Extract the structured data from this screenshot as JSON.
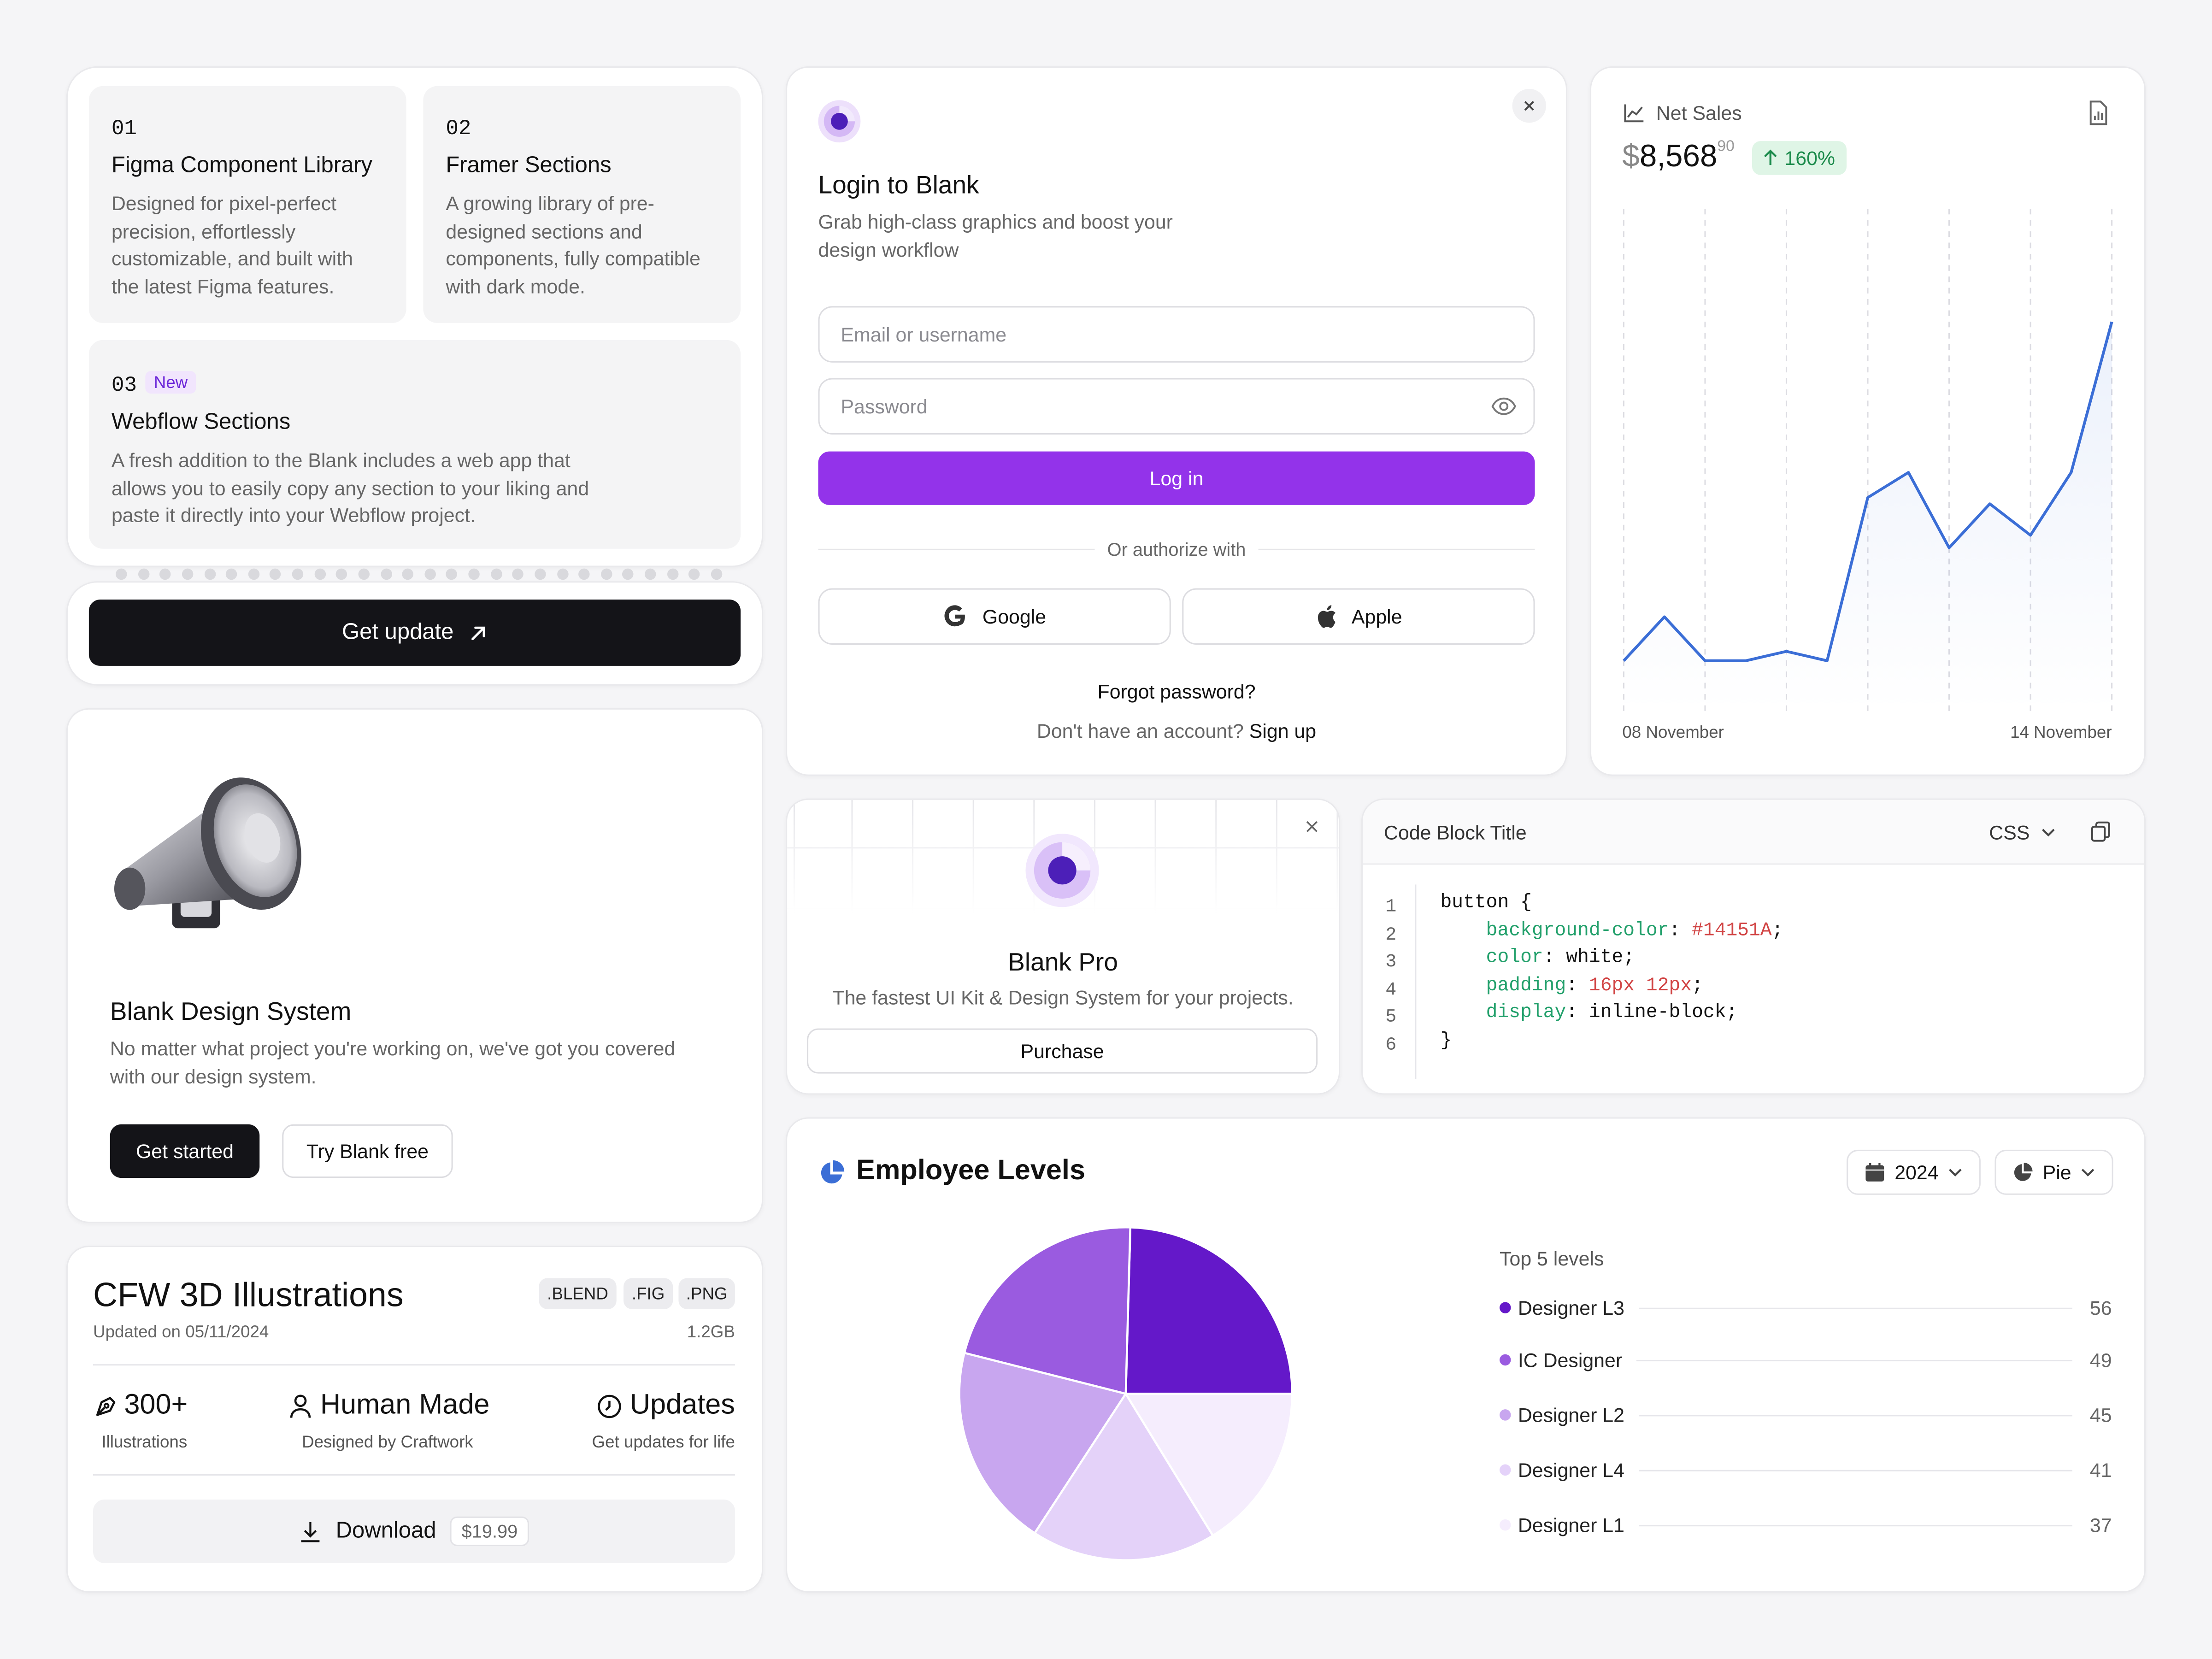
{
  "features": {
    "items": [
      {
        "num": "01",
        "title": "Figma Component Library",
        "desc": [
          "Designed for pixel-perfect",
          "precision, effortlessly",
          "customizable, and built with",
          "the latest Figma features."
        ]
      },
      {
        "num": "02",
        "title": "Framer Sections",
        "desc": [
          "A growing library of pre-",
          "designed sections and",
          "components, fully compatible",
          "with dark mode."
        ]
      },
      {
        "num": "03",
        "badge": "New",
        "title": "Webflow Sections",
        "desc": [
          "A fresh addition to the Blank includes a web app that",
          "allows you to easily copy any section to your liking and",
          "paste it directly into your Webflow project."
        ]
      }
    ],
    "cta_label": "Get update"
  },
  "login": {
    "title": "Login to Blank",
    "subtitle": [
      "Grab high-class graphics and boost your",
      "design workflow"
    ],
    "email_placeholder": "Email or username",
    "password_placeholder": "Password",
    "login_label": "Log in",
    "divider_label": "Or authorize with",
    "google_label": "Google",
    "apple_label": "Apple",
    "forgot_label": "Forgot password?",
    "no_account": "Don't have an account?",
    "signup_label": "Sign up"
  },
  "net_sales": {
    "title": "Net Sales",
    "currency": "$",
    "amount": "8,568",
    "cents": "90",
    "change": "160%",
    "start_label": "08 November",
    "end_label": "14 November",
    "accent": "#3b6ed6"
  },
  "design_system": {
    "title": "Blank Design System",
    "desc": [
      "No matter what project you're working on, we've got you covered",
      "with our design system."
    ],
    "primary_label": "Get started",
    "secondary_label": "Try Blank free"
  },
  "pro": {
    "title": "Blank Pro",
    "desc": "The fastest UI Kit & Design System for your projects.",
    "button_label": "Purchase"
  },
  "code": {
    "title": "Code Block Title",
    "lang": "CSS",
    "lines": [
      {
        "n": "1",
        "parts": [
          {
            "t": "button {",
            "c": ""
          }
        ]
      },
      {
        "n": "2",
        "parts": [
          {
            "t": "    ",
            "c": ""
          },
          {
            "t": "background-color",
            "c": "kw"
          },
          {
            "t": ": ",
            "c": ""
          },
          {
            "t": "#14151A",
            "c": "val"
          },
          {
            "t": ";",
            "c": ""
          }
        ]
      },
      {
        "n": "3",
        "parts": [
          {
            "t": "    ",
            "c": ""
          },
          {
            "t": "color",
            "c": "kw"
          },
          {
            "t": ": white;",
            "c": ""
          }
        ]
      },
      {
        "n": "4",
        "parts": [
          {
            "t": "    ",
            "c": ""
          },
          {
            "t": "padding",
            "c": "kw"
          },
          {
            "t": ": ",
            "c": ""
          },
          {
            "t": "16px 12px",
            "c": "val"
          },
          {
            "t": ";",
            "c": ""
          }
        ]
      },
      {
        "n": "5",
        "parts": [
          {
            "t": "    ",
            "c": ""
          },
          {
            "t": "display",
            "c": "kw"
          },
          {
            "t": ": inline-block;",
            "c": ""
          }
        ]
      },
      {
        "n": "6",
        "parts": [
          {
            "t": "}",
            "c": ""
          }
        ]
      }
    ]
  },
  "illustrations": {
    "title": "CFW 3D Illustrations",
    "tags": [
      ".BLEND",
      ".FIG",
      ".PNG"
    ],
    "updated": "Updated on 05/11/2024",
    "size": "1.2GB",
    "stats": [
      {
        "value": "300+",
        "label": "Illustrations",
        "icon": "pen-icon"
      },
      {
        "value": "Human Made",
        "label": "Designed by Craftwork",
        "icon": "user-icon"
      },
      {
        "value": "Updates",
        "label": "Get updates for life",
        "icon": "clock-icon"
      }
    ],
    "download_label": "Download",
    "price": "$19.99"
  },
  "employee": {
    "title": "Employee Levels",
    "year": "2024",
    "chart_type_label": "Pie",
    "legend_title": "Top 5 levels"
  },
  "chart_data": [
    {
      "type": "line",
      "title": "Net Sales",
      "x": [
        0,
        1,
        2,
        3,
        4,
        5,
        6,
        7,
        8,
        9,
        10,
        11,
        12
      ],
      "values": [
        8,
        15,
        8,
        8,
        9.5,
        8,
        34,
        38,
        26,
        33,
        28,
        38,
        62
      ],
      "ylim": [
        0,
        80
      ],
      "xlabel_start": "08 November",
      "xlabel_end": "14 November",
      "grid": "vertical dashed"
    },
    {
      "type": "pie",
      "title": "Employee Levels",
      "categories": [
        "Designer L3",
        "IC Designer",
        "Designer L2",
        "Designer L4",
        "Designer L1"
      ],
      "values": [
        56,
        49,
        45,
        41,
        37
      ],
      "colors": [
        "#6418c9",
        "#9a5be0",
        "#c8a6ef",
        "#e4d2f9",
        "#f5edfd"
      ]
    }
  ]
}
